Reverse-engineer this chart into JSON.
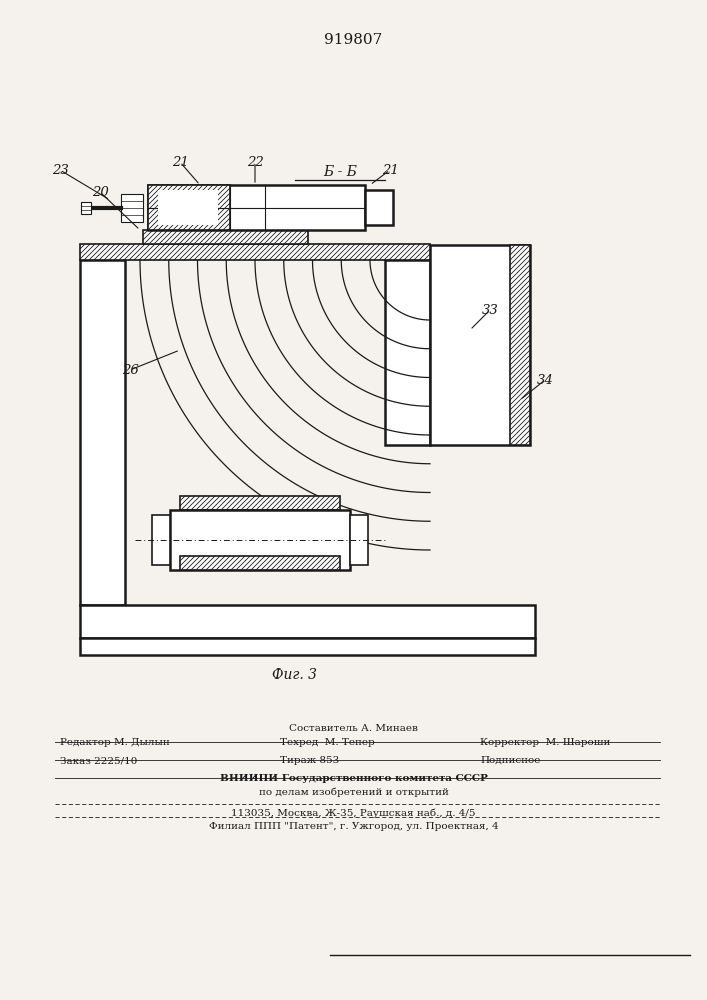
{
  "title": "919807",
  "fig_label": "Фиг. 3",
  "section_label": "Б - Б",
  "bg_color": "#f5f2ed",
  "line_color": "#1a1a1a",
  "bottom_texts": {
    "sostavitel": "Составитель А. Минаев",
    "redaktor": "Редактор М. Дылын",
    "tehred": "Техред  М. Тепер",
    "korrektor": "Корректор  М. Шароши",
    "zakaz": "Заказ 2225/10",
    "tirazh": "Тираж 853",
    "podpisnoe": "Подписное",
    "vniipи": "ВНИИПИ Государственного комитета СССР",
    "po_delam": "по делам изобретений и открытий",
    "address": "113035, Москва, Ж-35, Раушская наб., д. 4/5",
    "filial": "Филиал ППП \"Патент\", г. Ужгород, ул. Проектная, 4"
  }
}
